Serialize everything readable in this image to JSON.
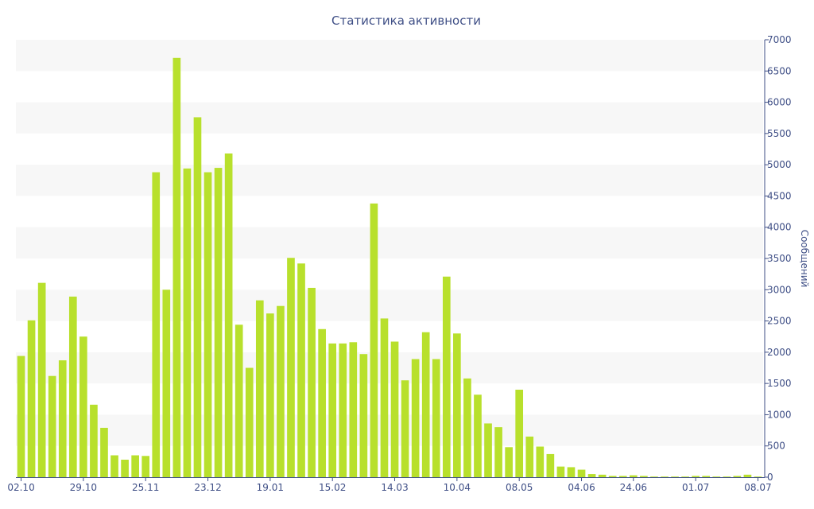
{
  "chart_data": {
    "type": "bar",
    "title": "Статистика активности",
    "xlabel": "",
    "ylabel": "Сообщений",
    "ylim": [
      0,
      7000
    ],
    "y_ticks": [
      0,
      500,
      1000,
      1500,
      2000,
      2500,
      3000,
      3500,
      4000,
      4500,
      5000,
      5500,
      6000,
      6500,
      7000
    ],
    "x_tick_labels": [
      {
        "index": 0,
        "label": "02.10"
      },
      {
        "index": 6,
        "label": "29.10"
      },
      {
        "index": 12,
        "label": "25.11"
      },
      {
        "index": 18,
        "label": "23.12"
      },
      {
        "index": 24,
        "label": "19.01"
      },
      {
        "index": 30,
        "label": "15.02"
      },
      {
        "index": 36,
        "label": "14.03"
      },
      {
        "index": 42,
        "label": "10.04"
      },
      {
        "index": 48,
        "label": "08.05"
      },
      {
        "index": 54,
        "label": "04.06"
      },
      {
        "index": 59,
        "label": "24.06"
      },
      {
        "index": 65,
        "label": "01.07"
      },
      {
        "index": 71,
        "label": "08.07"
      }
    ],
    "bar_color": "#b8e02c",
    "band_color": "#f7f7f7",
    "axis_color": "#3f4f86",
    "values": [
      1940,
      2510,
      3110,
      1620,
      1870,
      2890,
      2250,
      1160,
      790,
      350,
      280,
      350,
      340,
      4880,
      3000,
      6710,
      4940,
      5760,
      4880,
      4950,
      5180,
      2440,
      1750,
      2830,
      2620,
      2740,
      3510,
      3420,
      3030,
      2370,
      2140,
      2140,
      2160,
      1970,
      4380,
      2540,
      2170,
      1550,
      1890,
      2320,
      1890,
      3210,
      2300,
      1580,
      1320,
      860,
      800,
      480,
      1400,
      650,
      490,
      370,
      170,
      160,
      120,
      50,
      40,
      20,
      20,
      30,
      20,
      10,
      10,
      10,
      10,
      20,
      20,
      10,
      10,
      20,
      40,
      10
    ]
  }
}
